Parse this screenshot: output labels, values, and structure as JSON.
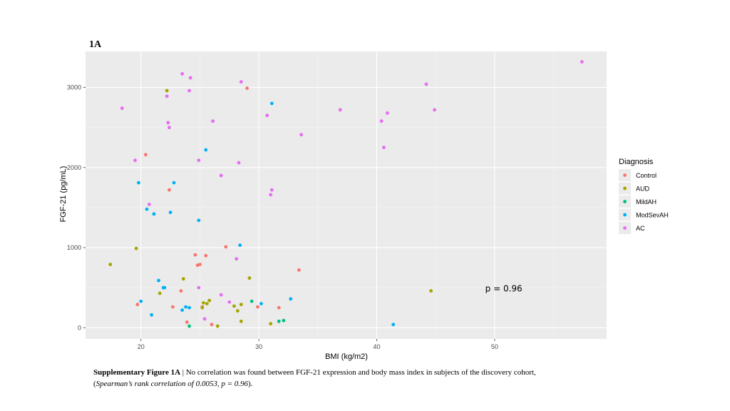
{
  "figure_label": "1A",
  "caption": {
    "bold": "Supplementary Figure 1A",
    "text": " | No correlation was found between FGF-21 expression and body mass index in subjects of the discovery cohort,",
    "open_paren": "(",
    "italic": "Spearman’s rank correlation of 0.0053, p = 0.96",
    "close_paren": ")."
  },
  "colors": {
    "panel_bg": "#EBEBEB",
    "grid_major": "#FFFFFF",
    "Control": "#F8766D",
    "AUD": "#A3A500",
    "MildAH": "#00BF7D",
    "ModSevAH": "#00B0F6",
    "AC": "#E76BF3"
  },
  "chart_data": {
    "type": "scatter",
    "title": "",
    "xlabel": "BMI (kg/m2)",
    "ylabel": "FGF-21 (pg/mL)",
    "xlim": [
      15.3,
      59.5
    ],
    "ylim": [
      -140,
      3450
    ],
    "xticks": [
      20,
      30,
      40,
      50
    ],
    "yticks": [
      0,
      1000,
      2000,
      3000
    ],
    "grid": true,
    "legend_title": "Diagnosis",
    "legend_position": "right",
    "annotation": "p = 0.96",
    "annotation_at": [
      49.2,
      452
    ],
    "series": [
      {
        "name": "Control",
        "points": [
          [
            19.7,
            290
          ],
          [
            20.4,
            2160
          ],
          [
            22.4,
            1720
          ],
          [
            23.4,
            460
          ],
          [
            24.6,
            910
          ],
          [
            24.8,
            780
          ],
          [
            25.0,
            790
          ],
          [
            25.5,
            900
          ],
          [
            27.2,
            1010
          ],
          [
            22.7,
            260
          ],
          [
            23.9,
            70
          ],
          [
            25.2,
            260
          ],
          [
            26.0,
            40
          ],
          [
            29.0,
            2990
          ],
          [
            29.9,
            260
          ],
          [
            31.7,
            250
          ],
          [
            33.4,
            720
          ]
        ]
      },
      {
        "name": "AUD",
        "points": [
          [
            17.4,
            790
          ],
          [
            19.6,
            990
          ],
          [
            21.6,
            430
          ],
          [
            22.2,
            2960
          ],
          [
            23.6,
            610
          ],
          [
            25.2,
            250
          ],
          [
            25.3,
            310
          ],
          [
            25.6,
            300
          ],
          [
            25.8,
            340
          ],
          [
            26.5,
            20
          ],
          [
            27.9,
            270
          ],
          [
            28.2,
            210
          ],
          [
            28.5,
            290
          ],
          [
            28.5,
            80
          ],
          [
            29.2,
            620
          ],
          [
            31.0,
            50
          ],
          [
            44.6,
            460
          ]
        ]
      },
      {
        "name": "MildAH",
        "points": [
          [
            24.1,
            20
          ],
          [
            29.4,
            330
          ],
          [
            31.7,
            80
          ],
          [
            32.1,
            90
          ]
        ]
      },
      {
        "name": "ModSevAH",
        "points": [
          [
            19.8,
            1810
          ],
          [
            20.0,
            330
          ],
          [
            20.5,
            1480
          ],
          [
            20.9,
            160
          ],
          [
            21.1,
            1420
          ],
          [
            21.5,
            590
          ],
          [
            21.9,
            500
          ],
          [
            22.0,
            500
          ],
          [
            22.5,
            1440
          ],
          [
            22.8,
            1810
          ],
          [
            23.5,
            220
          ],
          [
            23.8,
            260
          ],
          [
            24.1,
            250
          ],
          [
            24.9,
            1340
          ],
          [
            25.5,
            2220
          ],
          [
            28.4,
            1030
          ],
          [
            30.2,
            300
          ],
          [
            31.1,
            2800
          ],
          [
            32.7,
            360
          ],
          [
            41.4,
            40
          ]
        ]
      },
      {
        "name": "AC",
        "points": [
          [
            18.4,
            2740
          ],
          [
            19.5,
            2090
          ],
          [
            20.7,
            1540
          ],
          [
            22.2,
            2890
          ],
          [
            22.3,
            2560
          ],
          [
            22.4,
            2500
          ],
          [
            23.5,
            3170
          ],
          [
            24.1,
            2960
          ],
          [
            24.2,
            3120
          ],
          [
            24.9,
            2090
          ],
          [
            24.9,
            500
          ],
          [
            25.4,
            110
          ],
          [
            26.1,
            2580
          ],
          [
            26.8,
            1900
          ],
          [
            27.5,
            320
          ],
          [
            26.8,
            410
          ],
          [
            28.1,
            860
          ],
          [
            28.3,
            2060
          ],
          [
            28.5,
            3070
          ],
          [
            30.7,
            2650
          ],
          [
            31.0,
            1660
          ],
          [
            31.1,
            1720
          ],
          [
            33.6,
            2410
          ],
          [
            36.9,
            2720
          ],
          [
            40.4,
            2580
          ],
          [
            40.6,
            2250
          ],
          [
            40.9,
            2680
          ],
          [
            44.2,
            3040
          ],
          [
            44.9,
            2720
          ],
          [
            57.4,
            3320
          ]
        ]
      }
    ]
  }
}
